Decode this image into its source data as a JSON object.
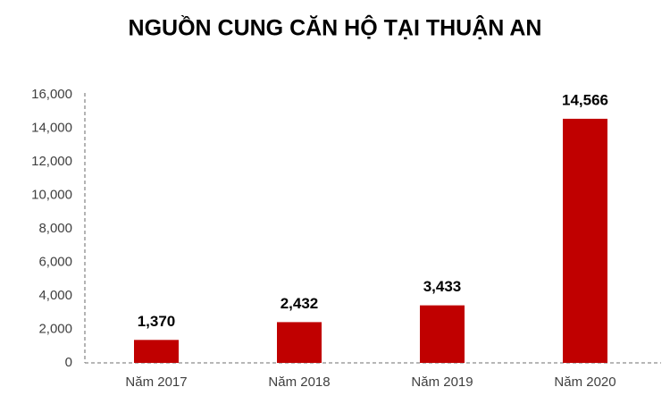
{
  "chart_data": {
    "type": "bar",
    "title": "NGUỒN CUNG CĂN HỘ TẠI THUẬN AN",
    "categories": [
      "Năm 2017",
      "Năm 2018",
      "Năm 2019",
      "Năm 2020"
    ],
    "values": [
      1370,
      2432,
      3433,
      14566
    ],
    "value_labels": [
      "1,370",
      "2,432",
      "3,433",
      "14,566"
    ],
    "color": "#c00000",
    "ylim": [
      0,
      16000
    ],
    "yticks": [
      0,
      {
        "value": 2000,
        "label": "2,000"
      },
      {
        "value": 4000,
        "label": "4,000"
      },
      {
        "value": 6000,
        "label": "6,000"
      },
      {
        "value": 8000,
        "label": "8,000"
      },
      {
        "value": 10000,
        "label": "10,000"
      },
      {
        "value": 12000,
        "label": "12,000"
      },
      {
        "value": 14000,
        "label": "14,000"
      },
      {
        "value": 16000,
        "label": "16,000"
      }
    ],
    "grid": false
  }
}
